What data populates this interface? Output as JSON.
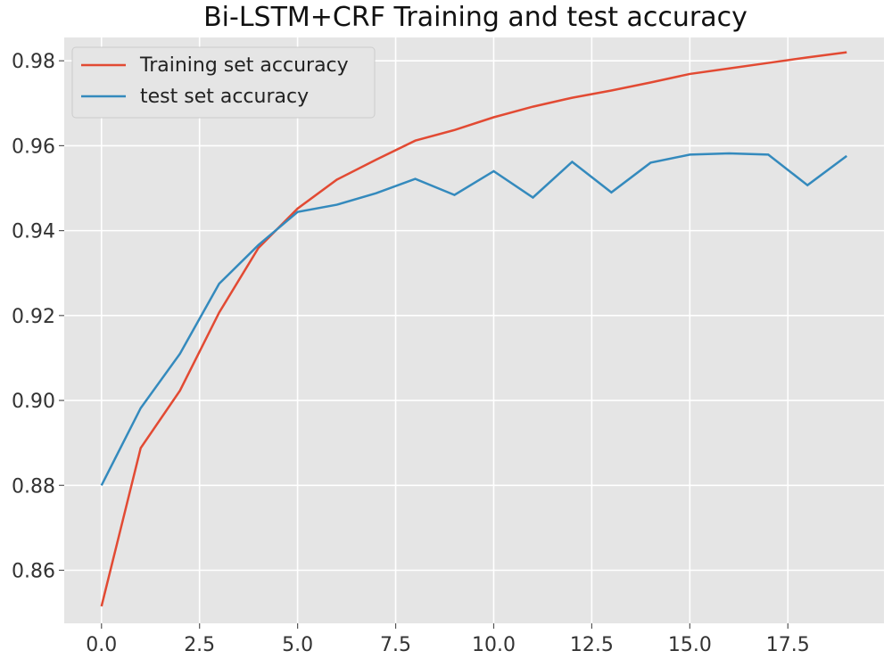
{
  "chart_data": {
    "type": "line",
    "title": "Bi-LSTM+CRF Training and test accuracy",
    "xlabel": "",
    "ylabel": "",
    "xlim": [
      -0.95,
      19.95
    ],
    "ylim": [
      0.8475,
      0.9855
    ],
    "xticks": [
      0.0,
      2.5,
      5.0,
      7.5,
      10.0,
      12.5,
      15.0,
      17.5
    ],
    "xtick_labels": [
      "0.0",
      "2.5",
      "5.0",
      "7.5",
      "10.0",
      "12.5",
      "15.0",
      "17.5"
    ],
    "yticks": [
      0.86,
      0.88,
      0.9,
      0.92,
      0.94,
      0.96,
      0.98
    ],
    "ytick_labels": [
      "0.86",
      "0.88",
      "0.90",
      "0.92",
      "0.94",
      "0.96",
      "0.98"
    ],
    "grid": true,
    "legend_position": "top-left",
    "x": [
      0,
      1,
      2,
      3,
      4,
      5,
      6,
      7,
      8,
      9,
      10,
      11,
      12,
      13,
      14,
      15,
      16,
      17,
      18,
      19
    ],
    "series": [
      {
        "name": "Training set accuracy",
        "color": "#e24a33",
        "values": [
          0.8515,
          0.8888,
          0.9023,
          0.9207,
          0.9359,
          0.9452,
          0.952,
          0.9567,
          0.9612,
          0.9637,
          0.9667,
          0.9692,
          0.9713,
          0.973,
          0.9749,
          0.9769,
          0.9782,
          0.9795,
          0.9808,
          0.982
        ]
      },
      {
        "name": "test set accuracy",
        "color": "#348abd",
        "values": [
          0.88,
          0.8982,
          0.911,
          0.9275,
          0.9366,
          0.9444,
          0.9461,
          0.9488,
          0.9522,
          0.9484,
          0.954,
          0.9478,
          0.9562,
          0.949,
          0.956,
          0.9579,
          0.9582,
          0.9579,
          0.9507,
          0.9576
        ]
      }
    ],
    "background": "#e5e5e5"
  }
}
